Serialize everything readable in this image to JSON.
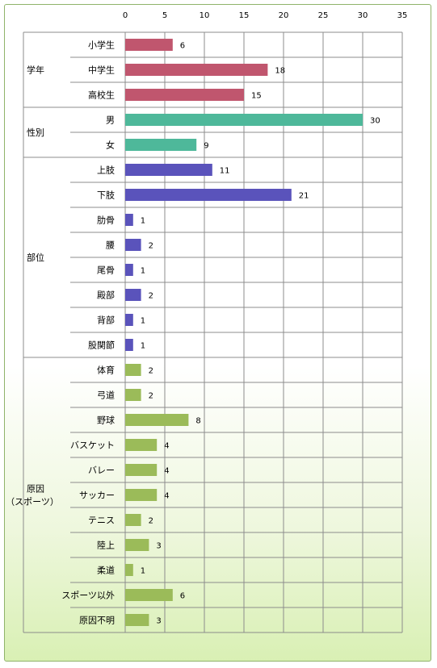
{
  "chart_data": {
    "type": "bar",
    "orientation": "horizontal",
    "xlim": [
      0,
      35
    ],
    "xticks": [
      0,
      5,
      10,
      15,
      20,
      25,
      30,
      35
    ],
    "grid": true,
    "groups": [
      {
        "label": "学年",
        "label_lines": [
          "学年"
        ],
        "color": "#c0566e",
        "items": [
          {
            "label": "小学生",
            "value": 6
          },
          {
            "label": "中学生",
            "value": 18
          },
          {
            "label": "高校生",
            "value": 15
          }
        ]
      },
      {
        "label": "性別",
        "label_lines": [
          "性別"
        ],
        "color": "#4eb89a",
        "items": [
          {
            "label": "男",
            "value": 30
          },
          {
            "label": "女",
            "value": 9
          }
        ]
      },
      {
        "label": "部位",
        "label_lines": [
          "部位"
        ],
        "color": "#5a53bb",
        "items": [
          {
            "label": "上肢",
            "value": 11
          },
          {
            "label": "下肢",
            "value": 21
          },
          {
            "label": "肋骨",
            "value": 1
          },
          {
            "label": "腰",
            "value": 2
          },
          {
            "label": "尾骨",
            "value": 1
          },
          {
            "label": "殿部",
            "value": 2
          },
          {
            "label": "背部",
            "value": 1
          },
          {
            "label": "股関節",
            "value": 1
          }
        ]
      },
      {
        "label": "原因（スポーツ）",
        "label_lines": [
          "原因",
          "（スポーツ）"
        ],
        "color": "#9bbb59",
        "items": [
          {
            "label": "体育",
            "value": 2
          },
          {
            "label": "弓道",
            "value": 2
          },
          {
            "label": "野球",
            "value": 8
          },
          {
            "label": "バスケット",
            "value": 4
          },
          {
            "label": "バレー",
            "value": 4
          },
          {
            "label": "サッカー",
            "value": 4
          },
          {
            "label": "テニス",
            "value": 2
          },
          {
            "label": "陸上",
            "value": 3
          },
          {
            "label": "柔道",
            "value": 1
          },
          {
            "label": "スポーツ以外",
            "value": 6
          },
          {
            "label": "原因不明",
            "value": 3
          }
        ]
      }
    ]
  }
}
